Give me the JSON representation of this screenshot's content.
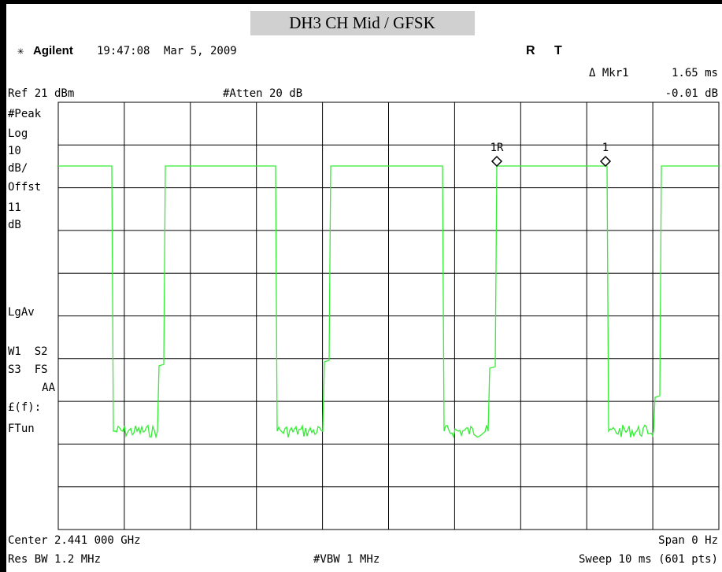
{
  "title": "DH3 CH Mid / GFSK",
  "header": {
    "brand": "Agilent",
    "time": "19:47:08",
    "date": "Mar 5, 2009",
    "flag_r": "R",
    "flag_t": "T"
  },
  "marker": {
    "label": "Δ Mkr1",
    "x": "1.65 ms",
    "y": "-0.01 dB"
  },
  "ref": "Ref 21 dBm",
  "atten": "#Atten 20 dB",
  "left_panel": [
    "#Peak",
    "Log",
    "10",
    "dB/",
    "Offst",
    "11",
    "dB",
    "LgAv",
    "W1  S2",
    "S3  FS",
    "AA",
    "£(f):",
    "FTun"
  ],
  "trace_markers": [
    "1R",
    "1"
  ],
  "footer": {
    "center": "Center 2.441 000 GHz",
    "span": "Span 0 Hz",
    "rbw": "Res BW 1.2 MHz",
    "vbw": "#VBW 1 MHz",
    "sweep": "Sweep 10 ms (601 pts)"
  }
}
